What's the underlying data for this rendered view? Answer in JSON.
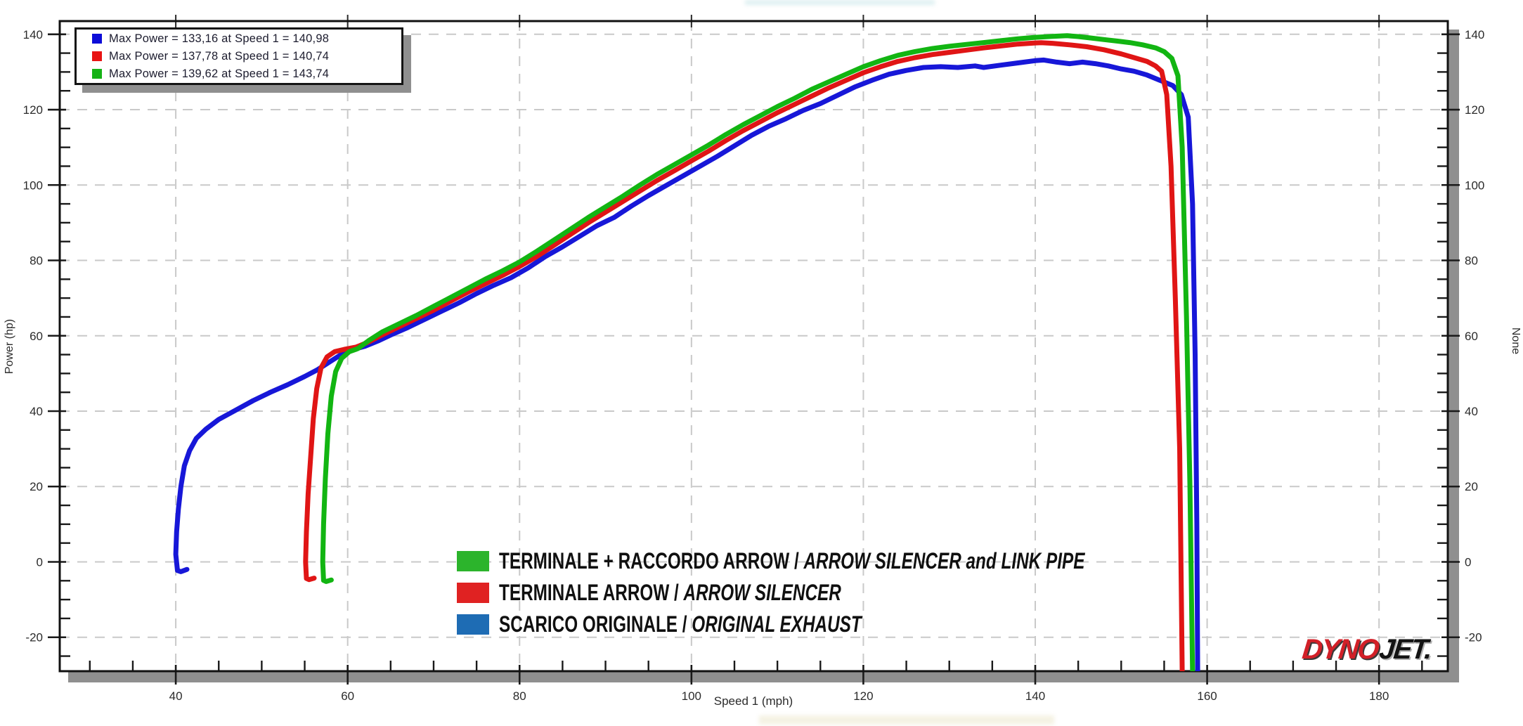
{
  "max_power_legend": {
    "items": [
      {
        "swatch_color": "#0d0dd8",
        "label": "Max Power = 133,16 at Speed 1 = 140,98"
      },
      {
        "swatch_color": "#e81414",
        "label": "Max Power = 137,78 at Speed 1 = 140,74"
      },
      {
        "swatch_color": "#16b216",
        "label": "Max Power = 139,62 at Speed 1 = 143,74"
      }
    ]
  },
  "series_legend": {
    "items": [
      {
        "swatch_color": "#2cb42c",
        "text_roman": "TERMINALE + RACCORDO ARROW / ",
        "text_italic": "ARROW SILENCER and LINK PIPE"
      },
      {
        "swatch_color": "#e02222",
        "text_roman": "TERMINALE ARROW / ",
        "text_italic": "ARROW SILENCER"
      },
      {
        "swatch_color": "#1e6cb4",
        "text_roman": "SCARICO ORIGINALE / ",
        "text_italic": "ORIGINAL EXHAUST"
      }
    ]
  },
  "logo": {
    "part1": "DYNO",
    "part2": "JET.",
    "part1_color": "#d22028",
    "part2_color": "#141414"
  },
  "chart_data": {
    "type": "line",
    "xlabel": "Speed 1 (mph)",
    "ylabel_left": "Power (hp)",
    "ylabel_right": "None",
    "grid": true,
    "grid_color": "#c9c9c9",
    "legend_position": "bottom-center",
    "x_axis": {
      "min": 26.5,
      "max": 188,
      "major_step": 20,
      "minor_step": 5,
      "major_labels": [
        40,
        60,
        80,
        100,
        120,
        140,
        160,
        180
      ]
    },
    "y_axis": {
      "min": -29,
      "max": 143.5,
      "major_step": 20,
      "minor_step": 5,
      "major_labels": [
        -20,
        0,
        20,
        40,
        60,
        80,
        100,
        120,
        140
      ]
    },
    "series": [
      {
        "name": "SCARICO ORIGINALE / ORIGINAL EXHAUST",
        "color": "#1717d8",
        "max_power": 133.16,
        "max_power_speed": 140.98,
        "points": [
          [
            41.3,
            -2.0
          ],
          [
            40.6,
            -2.6
          ],
          [
            40.2,
            -2.3
          ],
          [
            40.0,
            2
          ],
          [
            40.1,
            8
          ],
          [
            40.3,
            14
          ],
          [
            40.6,
            20
          ],
          [
            41.0,
            25.5
          ],
          [
            41.6,
            29.5
          ],
          [
            42.4,
            32.8
          ],
          [
            43.5,
            35.2
          ],
          [
            45,
            37.8
          ],
          [
            47,
            40.3
          ],
          [
            49,
            42.8
          ],
          [
            51,
            45.0
          ],
          [
            53,
            47.0
          ],
          [
            55,
            49.2
          ],
          [
            56.5,
            51
          ],
          [
            58,
            53.2
          ],
          [
            59.5,
            55.4
          ],
          [
            61,
            56.6
          ],
          [
            62,
            57.2
          ],
          [
            63.5,
            58.6
          ],
          [
            65,
            60.2
          ],
          [
            67,
            62.2
          ],
          [
            69,
            64.4
          ],
          [
            71,
            66.6
          ],
          [
            73,
            68.8
          ],
          [
            75,
            71.2
          ],
          [
            77,
            73.4
          ],
          [
            79,
            75.4
          ],
          [
            81,
            78
          ],
          [
            83,
            81
          ],
          [
            85,
            83.6
          ],
          [
            87,
            86.4
          ],
          [
            89,
            89.2
          ],
          [
            91,
            91.4
          ],
          [
            93,
            94.4
          ],
          [
            95,
            97.2
          ],
          [
            97,
            99.8
          ],
          [
            99,
            102.4
          ],
          [
            101,
            105
          ],
          [
            103,
            107.6
          ],
          [
            105,
            110.4
          ],
          [
            107,
            113.2
          ],
          [
            109,
            115.6
          ],
          [
            111,
            117.6
          ],
          [
            113,
            119.8
          ],
          [
            115,
            121.6
          ],
          [
            117,
            123.8
          ],
          [
            119,
            126
          ],
          [
            121,
            127.8
          ],
          [
            123,
            129.4
          ],
          [
            125,
            130.4
          ],
          [
            127,
            131.2
          ],
          [
            129,
            131.4
          ],
          [
            131,
            131.2
          ],
          [
            133,
            131.6
          ],
          [
            134,
            131.2
          ],
          [
            136,
            131.8
          ],
          [
            138,
            132.4
          ],
          [
            140,
            133.0
          ],
          [
            141,
            133.16
          ],
          [
            142.5,
            132.6
          ],
          [
            144,
            132.2
          ],
          [
            145.5,
            132.6
          ],
          [
            147,
            132.2
          ],
          [
            148.5,
            131.6
          ],
          [
            150,
            130.8
          ],
          [
            151.5,
            130.2
          ],
          [
            153,
            129.2
          ],
          [
            154.5,
            127.8
          ],
          [
            156,
            126.4
          ],
          [
            157,
            124.0
          ],
          [
            157.8,
            118
          ],
          [
            158.3,
            95
          ],
          [
            158.6,
            55
          ],
          [
            158.8,
            10
          ],
          [
            158.9,
            -29
          ]
        ]
      },
      {
        "name": "TERMINALE ARROW / ARROW SILENCER",
        "color": "#e01515",
        "max_power": 137.78,
        "max_power_speed": 140.74,
        "points": [
          [
            56.1,
            -4.3
          ],
          [
            55.5,
            -4.7
          ],
          [
            55.2,
            -4.4
          ],
          [
            55.1,
            0
          ],
          [
            55.2,
            8
          ],
          [
            55.4,
            18
          ],
          [
            55.7,
            28
          ],
          [
            56.0,
            38
          ],
          [
            56.4,
            46
          ],
          [
            56.9,
            51.5
          ],
          [
            57.6,
            54.4
          ],
          [
            58.5,
            55.8
          ],
          [
            59.6,
            56.4
          ],
          [
            61,
            57.0
          ],
          [
            62.5,
            58.4
          ],
          [
            64,
            60.2
          ],
          [
            66,
            62.4
          ],
          [
            68,
            64.6
          ],
          [
            70,
            66.8
          ],
          [
            72,
            69.2
          ],
          [
            74,
            71.6
          ],
          [
            76,
            73.8
          ],
          [
            78,
            76
          ],
          [
            80,
            78.4
          ],
          [
            82,
            81
          ],
          [
            84,
            84
          ],
          [
            86,
            87
          ],
          [
            88,
            90
          ],
          [
            90,
            92.8
          ],
          [
            92,
            95.6
          ],
          [
            94,
            98.4
          ],
          [
            96,
            101.2
          ],
          [
            98,
            103.8
          ],
          [
            100,
            106.4
          ],
          [
            102,
            109
          ],
          [
            104,
            111.8
          ],
          [
            106,
            114.4
          ],
          [
            108,
            116.8
          ],
          [
            110,
            119.2
          ],
          [
            112,
            121.4
          ],
          [
            114,
            123.6
          ],
          [
            116,
            125.8
          ],
          [
            118,
            127.8
          ],
          [
            120,
            129.8
          ],
          [
            122,
            131.4
          ],
          [
            124,
            132.8
          ],
          [
            126,
            133.8
          ],
          [
            128,
            134.6
          ],
          [
            130,
            135.2
          ],
          [
            132,
            135.8
          ],
          [
            134,
            136.4
          ],
          [
            136,
            136.9
          ],
          [
            138,
            137.4
          ],
          [
            140,
            137.7
          ],
          [
            140.7,
            137.78
          ],
          [
            142,
            137.6
          ],
          [
            144,
            137.2
          ],
          [
            146,
            136.7
          ],
          [
            148,
            135.9
          ],
          [
            150,
            134.8
          ],
          [
            151.5,
            133.8
          ],
          [
            153,
            132.8
          ],
          [
            154,
            131.6
          ],
          [
            154.7,
            130.2
          ],
          [
            155.3,
            124
          ],
          [
            155.8,
            105
          ],
          [
            156.3,
            70
          ],
          [
            156.8,
            30
          ],
          [
            157.1,
            -29
          ]
        ]
      },
      {
        "name": "TERMINALE + RACCORDO ARROW / ARROW SILENCER and LINK PIPE",
        "color": "#12b512",
        "max_power": 139.62,
        "max_power_speed": 143.74,
        "points": [
          [
            58.1,
            -4.8
          ],
          [
            57.5,
            -5.2
          ],
          [
            57.2,
            -4.9
          ],
          [
            57.1,
            0
          ],
          [
            57.2,
            10
          ],
          [
            57.4,
            22
          ],
          [
            57.7,
            34
          ],
          [
            58.1,
            44
          ],
          [
            58.6,
            50.5
          ],
          [
            59.3,
            54
          ],
          [
            60.2,
            55.8
          ],
          [
            61.2,
            56.6
          ],
          [
            62.5,
            58.8
          ],
          [
            64,
            61
          ],
          [
            66,
            63.2
          ],
          [
            68,
            65.4
          ],
          [
            70,
            67.8
          ],
          [
            72,
            70.2
          ],
          [
            74,
            72.6
          ],
          [
            76,
            75
          ],
          [
            78,
            77.2
          ],
          [
            80,
            79.6
          ],
          [
            82,
            82.4
          ],
          [
            84,
            85.4
          ],
          [
            86,
            88.4
          ],
          [
            88,
            91.4
          ],
          [
            90,
            94.2
          ],
          [
            92,
            97
          ],
          [
            94,
            100
          ],
          [
            96,
            102.8
          ],
          [
            98,
            105.4
          ],
          [
            100,
            108
          ],
          [
            102,
            110.6
          ],
          [
            104,
            113.4
          ],
          [
            106,
            116
          ],
          [
            108,
            118.4
          ],
          [
            110,
            120.8
          ],
          [
            112,
            123
          ],
          [
            114,
            125.4
          ],
          [
            116,
            127.4
          ],
          [
            118,
            129.4
          ],
          [
            120,
            131.4
          ],
          [
            122,
            133
          ],
          [
            124,
            134.4
          ],
          [
            126,
            135.4
          ],
          [
            128,
            136.2
          ],
          [
            130,
            136.8
          ],
          [
            132,
            137.3
          ],
          [
            134,
            137.8
          ],
          [
            136,
            138.3
          ],
          [
            138,
            138.8
          ],
          [
            140,
            139.2
          ],
          [
            142,
            139.45
          ],
          [
            143.7,
            139.62
          ],
          [
            145,
            139.4
          ],
          [
            146.5,
            139.0
          ],
          [
            148,
            138.6
          ],
          [
            149.5,
            138.2
          ],
          [
            151,
            137.8
          ],
          [
            152.5,
            137.2
          ],
          [
            154,
            136.4
          ],
          [
            155,
            135.4
          ],
          [
            155.9,
            133.6
          ],
          [
            156.6,
            129
          ],
          [
            157.1,
            110
          ],
          [
            157.6,
            65
          ],
          [
            158.0,
            20
          ],
          [
            158.3,
            -29
          ]
        ]
      }
    ]
  }
}
